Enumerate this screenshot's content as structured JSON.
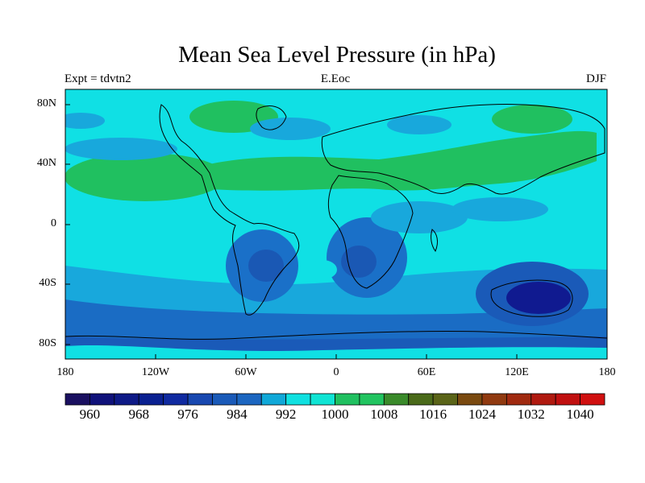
{
  "title": "Mean Sea Level Pressure (in hPa)",
  "label_left": "Expt = tdvtn2",
  "label_center": "E.Eoc",
  "label_right": "DJF",
  "map": {
    "type": "filled-contour-map",
    "variable": "Mean Sea Level Pressure",
    "units": "hPa",
    "season": "DJF",
    "projection": "cylindrical-equidistant",
    "lon_range": [
      -180,
      180
    ],
    "lat_range": [
      -90,
      90
    ],
    "x_ticks": [
      "180",
      "120W",
      "60W",
      "0",
      "60E",
      "120E",
      "180"
    ],
    "y_ticks": [
      "80N",
      "40N",
      "0",
      "40S",
      "80S"
    ],
    "contour_levels": [
      960,
      964,
      968,
      972,
      976,
      980,
      984,
      988,
      992,
      996,
      1000,
      1004,
      1008,
      1012,
      1016,
      1020,
      1024,
      1028,
      1032,
      1036,
      1040
    ],
    "colorbar_labels": [
      "960",
      "968",
      "976",
      "984",
      "992",
      "1000",
      "1008",
      "1016",
      "1024",
      "1032",
      "1040"
    ],
    "colorbar_colors": [
      "#1a1060",
      "#10127a",
      "#0e1a86",
      "#0a2090",
      "#102aa0",
      "#1848b0",
      "#1a5ab8",
      "#1c66c0",
      "#10a8d8",
      "#10e0e0",
      "#10e4d4",
      "#20c060",
      "#22c460",
      "#3a8a2a",
      "#4a6a1a",
      "#5a6418",
      "#7a4a10",
      "#903a10",
      "#a02a10",
      "#b01a10",
      "#c01010",
      "#d01010"
    ],
    "color_key": {
      "below_972": "#1010a0",
      "976_984": "#1e60c0",
      "984_992": "#1a80d0",
      "992_1000": "#10b8e0",
      "1000_1008": "#00e0e0",
      "1008_1016": "#20c060"
    }
  }
}
